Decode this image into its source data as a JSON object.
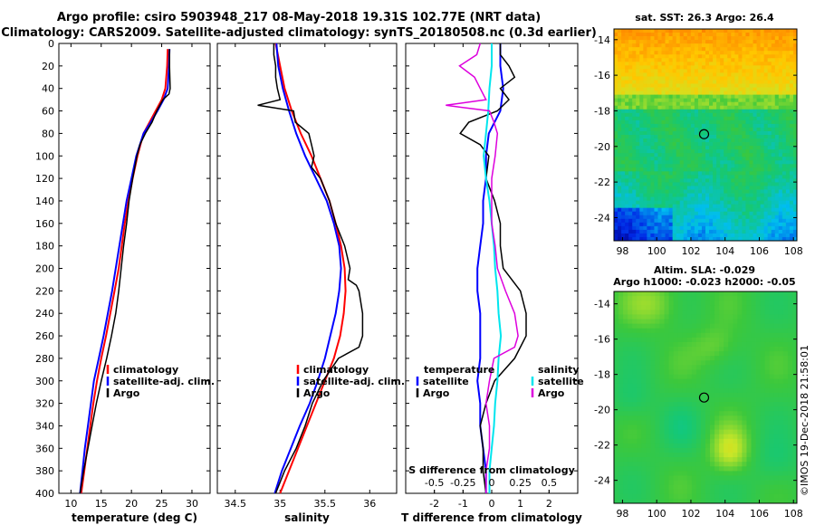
{
  "title_line1": "Argo profile: csiro 5903948_217 08-May-2018 19.31S 102.77E (NRT data)",
  "title_line2": "Climatology: CARS2009. Satellite-adjusted climatology: synTS_20180508.nc (0.3d earlier)",
  "sst_map_title": "sat. SST: 26.3 Argo: 26.4",
  "sla_title_line1": "Altim. SLA: -0.029",
  "sla_title_line2": "Argo h1000: -0.023 h2000: -0.05",
  "credit": "©IMOS 19-Dec-2018 21:58:01",
  "colors": {
    "climatology": "#ff0000",
    "satellite": "#0000ff",
    "argo": "#000000",
    "s_satellite": "#00e5ee",
    "s_argo": "#dd00dd"
  },
  "legend_temp": {
    "clim": "climatology",
    "sat": "satellite-adj. clim.",
    "argo": "Argo"
  },
  "legend_sal": {
    "clim": "climatology",
    "sat": "satellite-adj. clim.",
    "argo": "Argo"
  },
  "legend_diff": {
    "temp_head": "temperature",
    "sal_head": "salinity",
    "t_sat": "satellite",
    "t_argo": "Argo",
    "s_sat": "satellite",
    "s_argo": "Argo"
  },
  "chart_data": [
    {
      "type": "line",
      "name": "temperature",
      "xlabel": "temperature (deg C)",
      "ylabel": "",
      "xlim": [
        8,
        33
      ],
      "ylim": [
        400,
        0
      ],
      "xticks": [
        10,
        15,
        20,
        25,
        30
      ],
      "yticks": [
        0,
        20,
        40,
        60,
        80,
        100,
        120,
        140,
        160,
        180,
        200,
        220,
        240,
        260,
        280,
        300,
        320,
        340,
        360,
        380,
        400
      ],
      "series": [
        {
          "name": "climatology",
          "depth": [
            5,
            20,
            40,
            50,
            60,
            70,
            80,
            100,
            120,
            140,
            160,
            180,
            200,
            220,
            240,
            260,
            280,
            300,
            320,
            340,
            360,
            380,
            400
          ],
          "values": [
            26.0,
            25.9,
            25.6,
            25.0,
            24.0,
            23.0,
            22.0,
            21.0,
            20.2,
            19.5,
            18.9,
            18.4,
            17.9,
            17.2,
            16.5,
            15.8,
            15.0,
            14.3,
            13.7,
            13.2,
            12.7,
            12.2,
            11.7
          ]
        },
        {
          "name": "satellite-adj. clim.",
          "depth": [
            5,
            20,
            40,
            50,
            60,
            70,
            80,
            100,
            120,
            140,
            160,
            180,
            200,
            220,
            240,
            260,
            280,
            300,
            320,
            340,
            360,
            380,
            400
          ],
          "values": [
            26.3,
            26.2,
            26.0,
            25.3,
            24.3,
            23.2,
            22.0,
            20.8,
            20.0,
            19.2,
            18.6,
            18.0,
            17.4,
            16.8,
            16.1,
            15.4,
            14.6,
            13.8,
            13.3,
            12.8,
            12.3,
            11.9,
            11.5
          ]
        },
        {
          "name": "Argo",
          "depth": [
            5,
            20,
            40,
            45,
            50,
            60,
            70,
            80,
            90,
            100,
            120,
            140,
            160,
            180,
            200,
            220,
            240,
            260,
            280,
            300,
            320,
            340,
            360,
            380,
            400
          ],
          "values": [
            26.3,
            26.3,
            26.4,
            26.2,
            25.2,
            24.2,
            23.4,
            22.3,
            21.4,
            20.9,
            20.2,
            19.6,
            19.2,
            18.7,
            18.3,
            17.9,
            17.4,
            16.7,
            15.9,
            15.0,
            14.2,
            13.5,
            12.8,
            12.1,
            11.5
          ]
        }
      ]
    },
    {
      "type": "line",
      "name": "salinity",
      "xlabel": "salinity",
      "ylabel": "",
      "xlim": [
        34.3,
        36.3
      ],
      "ylim": [
        400,
        0
      ],
      "xticks": [
        34.5,
        35,
        35.5,
        36
      ],
      "series": [
        {
          "name": "climatology",
          "depth": [
            0,
            20,
            40,
            60,
            80,
            100,
            120,
            140,
            160,
            180,
            200,
            220,
            240,
            260,
            280,
            300,
            320,
            340,
            360,
            380,
            400
          ],
          "values": [
            34.95,
            35.0,
            35.05,
            35.13,
            35.23,
            35.35,
            35.45,
            35.55,
            35.62,
            35.68,
            35.72,
            35.73,
            35.71,
            35.67,
            35.6,
            35.5,
            35.4,
            35.3,
            35.2,
            35.1,
            35.0
          ]
        },
        {
          "name": "satellite-adj. clim.",
          "depth": [
            0,
            20,
            40,
            60,
            80,
            100,
            120,
            140,
            160,
            180,
            200,
            220,
            240,
            260,
            280,
            300,
            320,
            340,
            360,
            380,
            400
          ],
          "values": [
            34.96,
            34.98,
            35.03,
            35.1,
            35.18,
            35.28,
            35.4,
            35.52,
            35.6,
            35.66,
            35.68,
            35.66,
            35.62,
            35.56,
            35.5,
            35.42,
            35.33,
            35.22,
            35.12,
            35.02,
            34.94
          ]
        },
        {
          "name": "Argo",
          "depth": [
            0,
            10,
            20,
            30,
            40,
            50,
            55,
            60,
            70,
            80,
            90,
            100,
            110,
            120,
            140,
            160,
            180,
            200,
            210,
            215,
            220,
            240,
            260,
            270,
            280,
            300,
            320,
            340,
            360,
            380,
            400
          ],
          "values": [
            34.93,
            34.93,
            34.95,
            34.95,
            34.97,
            35.0,
            34.75,
            35.15,
            35.17,
            35.32,
            35.35,
            35.38,
            35.35,
            35.45,
            35.55,
            35.62,
            35.72,
            35.78,
            35.76,
            35.85,
            35.88,
            35.92,
            35.92,
            35.88,
            35.65,
            35.48,
            35.36,
            35.28,
            35.18,
            35.05,
            34.95
          ]
        }
      ]
    },
    {
      "type": "line",
      "name": "difference",
      "xlabel": "T difference from climatology",
      "xlabel2": "S difference from climatology",
      "ylim": [
        400,
        0
      ],
      "xlim": [
        -3,
        3
      ],
      "xticks": [
        -2,
        -1,
        0,
        1,
        2
      ],
      "xlim_s": [
        -0.75,
        0.75
      ],
      "xticks_s": [
        -0.5,
        -0.25,
        0,
        0.25,
        0.5
      ],
      "series": [
        {
          "name": "T satellite",
          "axis": "T",
          "depth": [
            0,
            20,
            40,
            60,
            80,
            100,
            120,
            140,
            160,
            180,
            200,
            220,
            240,
            260,
            280,
            300,
            320,
            340,
            360,
            380,
            400
          ],
          "values": [
            0.3,
            0.3,
            0.4,
            0.3,
            -0.1,
            -0.2,
            -0.2,
            -0.3,
            -0.3,
            -0.4,
            -0.5,
            -0.5,
            -0.4,
            -0.4,
            -0.4,
            -0.5,
            -0.4,
            -0.4,
            -0.3,
            -0.2,
            -0.2
          ]
        },
        {
          "name": "T Argo",
          "axis": "T",
          "depth": [
            0,
            10,
            20,
            30,
            40,
            50,
            60,
            70,
            80,
            90,
            100,
            120,
            140,
            160,
            180,
            200,
            220,
            240,
            260,
            280,
            300,
            320,
            340,
            360,
            380,
            400
          ],
          "values": [
            0.3,
            0.3,
            0.6,
            0.8,
            0.3,
            0.6,
            0.2,
            -0.8,
            -1.1,
            -0.4,
            -0.1,
            -0.2,
            0.1,
            0.3,
            0.3,
            0.4,
            1.0,
            1.2,
            1.2,
            0.8,
            0.1,
            -0.2,
            -0.4,
            -0.3,
            -0.3,
            -0.2
          ]
        },
        {
          "name": "S satellite",
          "axis": "S",
          "depth": [
            0,
            20,
            40,
            60,
            80,
            100,
            120,
            140,
            160,
            180,
            200,
            220,
            240,
            260,
            280,
            300,
            320,
            340,
            360,
            380,
            400
          ],
          "values": [
            0.0,
            0.0,
            -0.02,
            -0.03,
            -0.05,
            -0.07,
            -0.05,
            -0.02,
            0.0,
            0.02,
            0.03,
            0.05,
            0.06,
            0.08,
            0.06,
            0.05,
            0.03,
            0.02,
            0.0,
            -0.02,
            -0.02
          ]
        },
        {
          "name": "S Argo",
          "axis": "S",
          "depth": [
            0,
            10,
            20,
            30,
            40,
            50,
            55,
            60,
            70,
            80,
            100,
            120,
            140,
            160,
            180,
            200,
            220,
            240,
            260,
            270,
            280,
            300,
            320,
            340,
            360,
            380,
            400
          ],
          "values": [
            -0.1,
            -0.13,
            -0.28,
            -0.15,
            -0.1,
            -0.05,
            -0.4,
            -0.02,
            0.02,
            0.05,
            0.03,
            0.0,
            0.0,
            0.0,
            0.03,
            0.05,
            0.12,
            0.2,
            0.23,
            0.2,
            0.02,
            -0.02,
            -0.05,
            -0.02,
            -0.02,
            -0.05,
            -0.05
          ]
        }
      ]
    },
    {
      "type": "heatmap",
      "name": "sat. SST map",
      "xlim": [
        97.5,
        108.2
      ],
      "ylim": [
        -25.3,
        -13.4
      ],
      "xticks": [
        98,
        100,
        102,
        104,
        106,
        108
      ],
      "yticks": [
        -14,
        -16,
        -18,
        -20,
        -22,
        -24
      ],
      "marker": {
        "lon": 102.77,
        "lat": -19.31
      }
    },
    {
      "type": "heatmap",
      "name": "altimetry SLA map",
      "xlim": [
        97.5,
        108.2
      ],
      "ylim": [
        -25.3,
        -13.3
      ],
      "xticks": [
        98,
        100,
        102,
        104,
        106,
        108
      ],
      "yticks": [
        -14,
        -16,
        -18,
        -20,
        -22,
        -24
      ],
      "marker": {
        "lon": 102.77,
        "lat": -19.31
      }
    }
  ]
}
